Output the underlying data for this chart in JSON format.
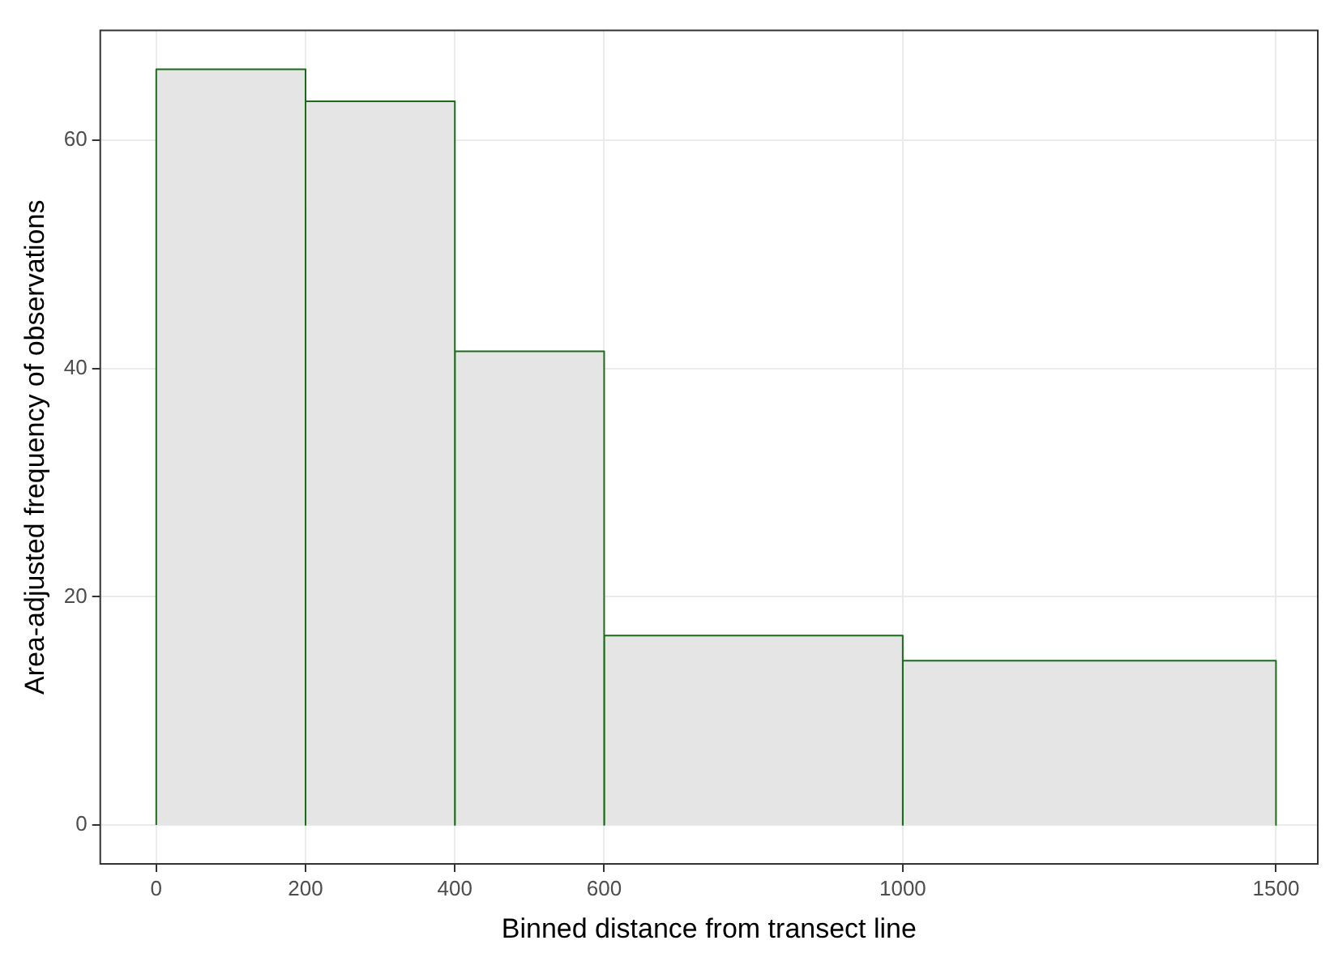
{
  "chart_data": {
    "type": "histogram",
    "xlabel": "Binned distance from transect line",
    "ylabel": "Area-adjusted frequency of observations",
    "bins": [
      0,
      200,
      400,
      600,
      1000,
      1500
    ],
    "values": [
      66.2,
      63.4,
      41.5,
      16.6,
      14.4
    ],
    "color": "#e5e5e5",
    "xlim": [
      -75,
      1556
    ],
    "xticks": [
      0,
      200,
      400,
      600,
      1000,
      1500
    ],
    "ylim": [
      -3.4,
      69.6
    ],
    "yticks": [
      0,
      20,
      40,
      60
    ],
    "grid": true,
    "legend": false
  }
}
